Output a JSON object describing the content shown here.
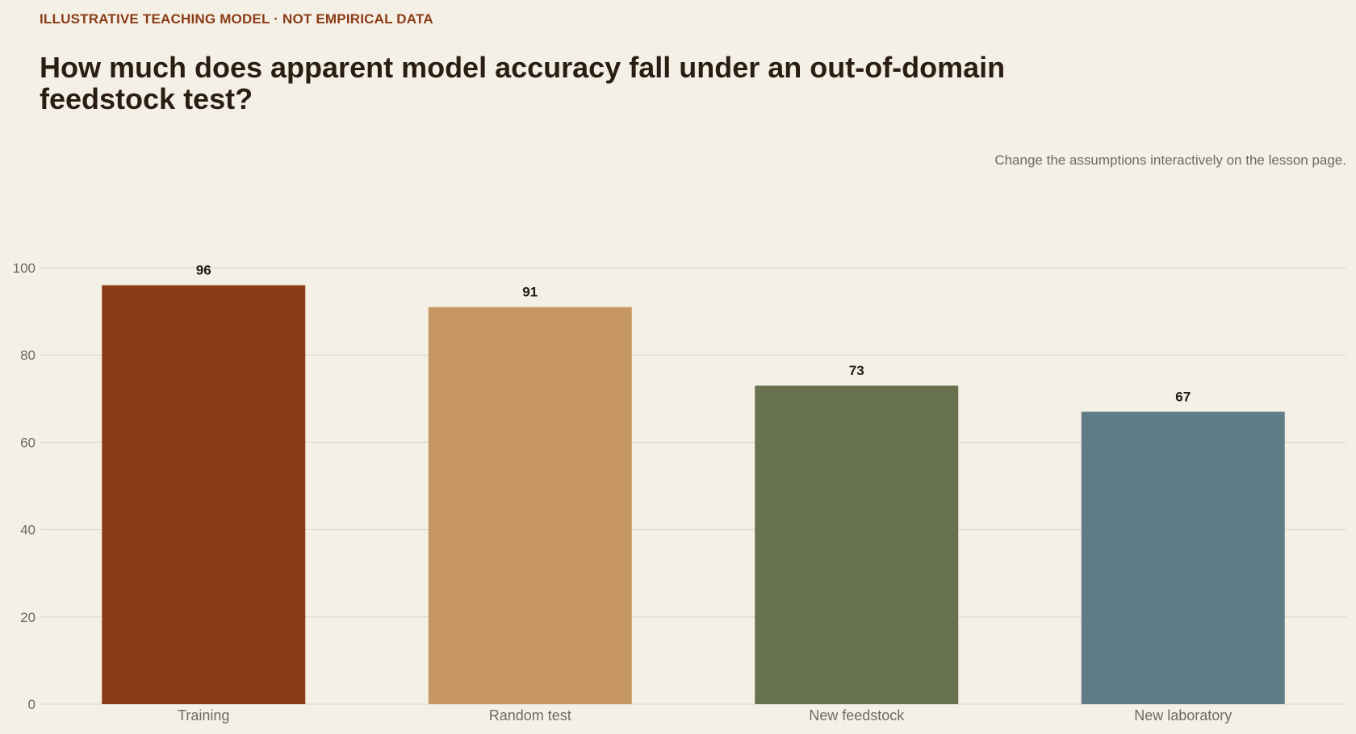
{
  "header": {
    "kicker": "ILLUSTRATIVE TEACHING MODEL · NOT EMPIRICAL DATA",
    "title": "How much does apparent model accuracy fall under an out-of-domain feedstock test?",
    "note": "Change the assumptions interactively on the lesson page."
  },
  "chart_data": {
    "type": "bar",
    "title": "How much does apparent model accuracy fall under an out-of-domain feedstock test?",
    "categories": [
      "Training",
      "Random test",
      "New feedstock",
      "New laboratory"
    ],
    "values": [
      96,
      91,
      73,
      67
    ],
    "colors": [
      "#8a3b17",
      "#c69763",
      "#68724e",
      "#607d87"
    ],
    "xlabel": "",
    "ylabel": "",
    "ylim": [
      0,
      100
    ],
    "yticks": [
      0,
      20,
      40,
      60,
      80,
      100
    ],
    "grid": true,
    "legend": "none"
  }
}
